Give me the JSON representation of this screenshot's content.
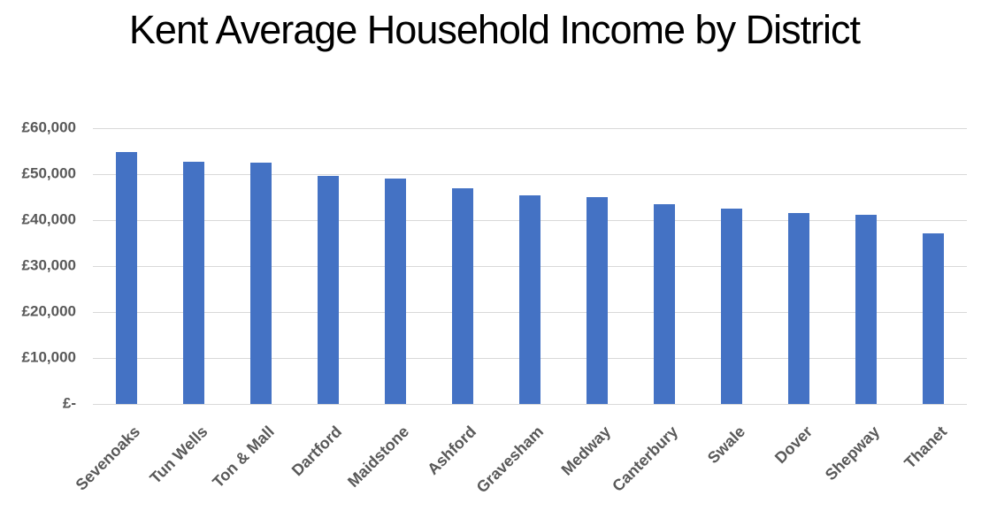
{
  "chart_data": {
    "type": "bar",
    "title": "Kent Average Household Income by District",
    "categories": [
      "Sevenoaks",
      "Tun Wells",
      "Ton & Mall",
      "Dartford",
      "Maidstone",
      "Ashford",
      "Gravesham",
      "Medway",
      "Canterbury",
      "Swale",
      "Dover",
      "Shepway",
      "Thanet"
    ],
    "values": [
      54800,
      52700,
      52500,
      49600,
      49000,
      46900,
      45400,
      45000,
      43500,
      42500,
      41500,
      41200,
      37100
    ],
    "xlabel": "",
    "ylabel": "",
    "ylim": [
      0,
      60000
    ],
    "y_ticks": [
      {
        "value": 0,
        "label": "£-"
      },
      {
        "value": 10000,
        "label": "£10,000"
      },
      {
        "value": 20000,
        "label": "£20,000"
      },
      {
        "value": 30000,
        "label": "£30,000"
      },
      {
        "value": 40000,
        "label": "£40,000"
      },
      {
        "value": 50000,
        "label": "£50,000"
      },
      {
        "value": 60000,
        "label": "£60,000"
      }
    ],
    "grid": "horizontal",
    "legend_position": "none",
    "bar_color": "#4472C4",
    "gridline_color": "#D9D9D9",
    "axis_label_color": "#595959",
    "title_color": "#000000"
  }
}
